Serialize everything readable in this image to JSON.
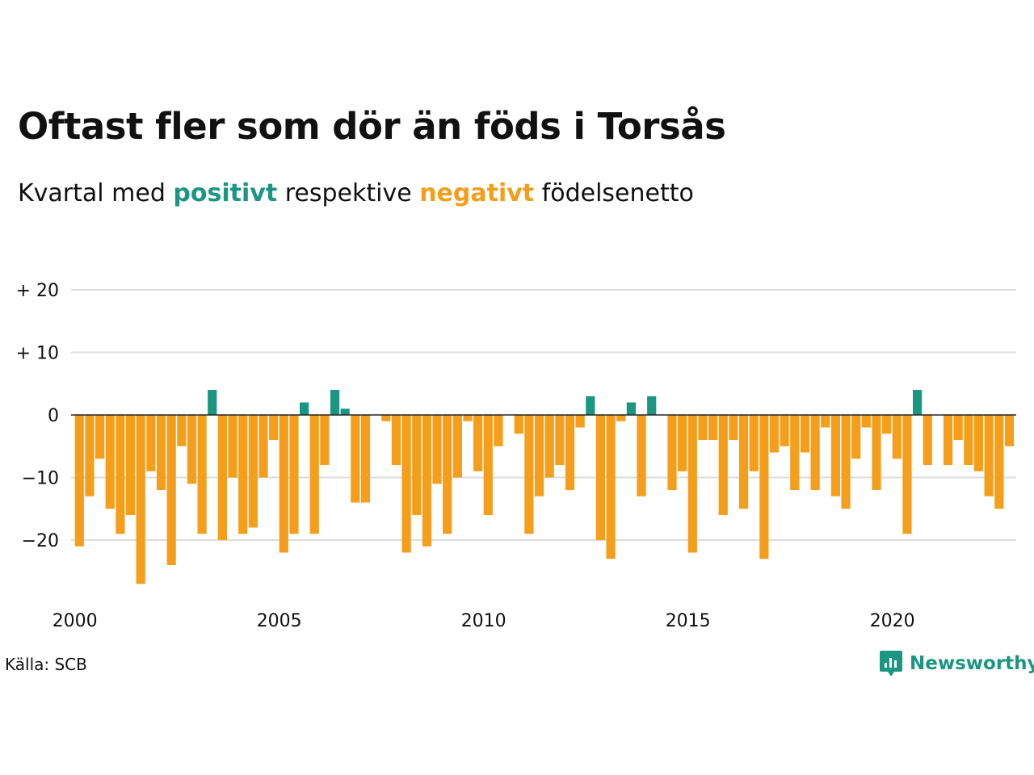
{
  "title": "Oftast fler som dör än föds i Torsås",
  "subtitle": {
    "prefix": "Kvartal med ",
    "positive_word": "positivt",
    "middle": " respektive ",
    "negative_word": "negativt",
    "suffix": " födelsenetto"
  },
  "source": "Källa: SCB",
  "brand": "Newsworthy",
  "colors": {
    "positive": "#1a9683",
    "negative": "#f59e1b",
    "grid": "#dddddd",
    "zero": "#222222"
  },
  "chart_data": {
    "type": "bar",
    "x_start": "2000 Q1",
    "frequency": "quarterly",
    "ylim": [
      -28,
      20
    ],
    "yticks": [
      20,
      10,
      0,
      -10,
      -20
    ],
    "ytick_labels": [
      "+ 20",
      "+ 10",
      "0",
      "−10",
      "−20"
    ],
    "xticks": [
      "2000",
      "2005",
      "2010",
      "2015",
      "2020"
    ],
    "grid": true,
    "values": [
      -21,
      -13,
      -7,
      -15,
      -19,
      -16,
      -27,
      -9,
      -12,
      -24,
      -5,
      -11,
      -19,
      4,
      -20,
      -10,
      -19,
      -18,
      -10,
      -4,
      -22,
      -19,
      2,
      -19,
      -8,
      4,
      1,
      -14,
      -14,
      0,
      -1,
      -8,
      -22,
      -16,
      -21,
      -11,
      -19,
      -10,
      -1,
      -9,
      -16,
      -5,
      0,
      -3,
      -19,
      -13,
      -10,
      -8,
      -12,
      -2,
      3,
      -20,
      -23,
      -1,
      2,
      -13,
      3,
      0,
      -12,
      -9,
      -22,
      -4,
      -4,
      -16,
      -4,
      -15,
      -9,
      -23,
      -6,
      -5,
      -12,
      -6,
      -12,
      -2,
      -13,
      -15,
      -7,
      -2,
      -12,
      -3,
      -7,
      -19,
      4,
      -8,
      0,
      -8,
      -4,
      -8,
      -9,
      -13,
      -15,
      -5
    ]
  }
}
